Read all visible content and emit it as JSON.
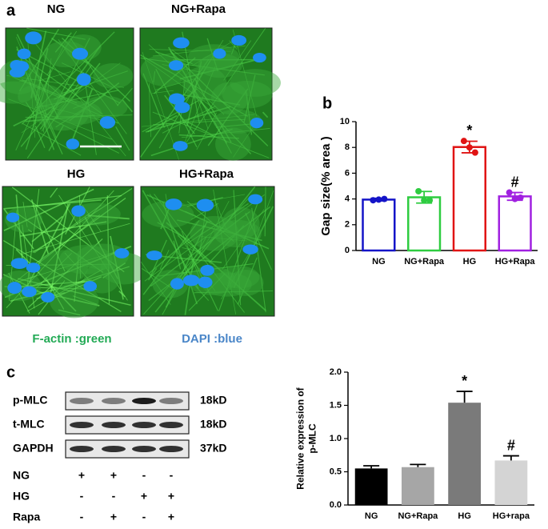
{
  "panel_labels": [
    "a",
    "b",
    "c"
  ],
  "microscopy": {
    "titles": [
      "NG",
      "NG+Rapa",
      "HG",
      "HG+Rapa"
    ],
    "legend": [
      "F-actin :green",
      "DAPI :blue"
    ]
  },
  "blot": {
    "rows": [
      {
        "name": "p-MLC",
        "size": "18kD"
      },
      {
        "name": "t-MLC",
        "size": "18kD"
      },
      {
        "name": "GAPDH",
        "size": "37kD"
      }
    ],
    "conditions": [
      {
        "name": "NG",
        "signs": [
          "+",
          "+",
          "-",
          "-"
        ]
      },
      {
        "name": "HG",
        "signs": [
          "-",
          "-",
          "+",
          "+"
        ]
      },
      {
        "name": "Rapa",
        "signs": [
          "-",
          "+",
          "-",
          "+"
        ]
      }
    ]
  },
  "chart_data": [
    {
      "type": "bar",
      "ylabel": [
        "Gap size(% area )"
      ],
      "categories": [
        "NG",
        "NG+Rapa",
        "HG",
        "HG+Rapa"
      ],
      "values": [
        3.95,
        4.13,
        8.03,
        4.2
      ],
      "errors": [
        0.1,
        0.45,
        0.45,
        0.3
      ],
      "points": [
        [
          3.9,
          3.95,
          4.0
        ],
        [
          4.6,
          3.9,
          3.9
        ],
        [
          8.5,
          8.0,
          7.6
        ],
        [
          4.5,
          4.0,
          4.1
        ]
      ],
      "colors": [
        "#1414c8",
        "#2ecc40",
        "#e01414",
        "#a020e0"
      ],
      "bar_fill": false,
      "annotations": [
        null,
        null,
        "*",
        "#"
      ],
      "ylim": [
        0,
        10
      ],
      "yticks": [
        0,
        2,
        4,
        6,
        8,
        10
      ]
    },
    {
      "type": "bar",
      "ylabel": [
        "Relative  expression of",
        "p-MLC"
      ],
      "categories": [
        "NG",
        "NG+Rapa",
        "HG",
        "HG+rapa"
      ],
      "values": [
        0.55,
        0.57,
        1.54,
        0.67
      ],
      "errors": [
        0.04,
        0.04,
        0.17,
        0.07
      ],
      "colors": [
        "#000000",
        "#a6a6a6",
        "#7a7a7a",
        "#d4d4d4"
      ],
      "bar_fill": true,
      "annotations": [
        null,
        null,
        "*",
        "#"
      ],
      "ylim": [
        0,
        2
      ],
      "yticks": [
        {
          "value": 0,
          "label": "0.0"
        },
        0.5,
        {
          "value": 1,
          "label": "1.0"
        },
        1.5,
        {
          "value": 2,
          "label": "2.0"
        }
      ]
    }
  ]
}
